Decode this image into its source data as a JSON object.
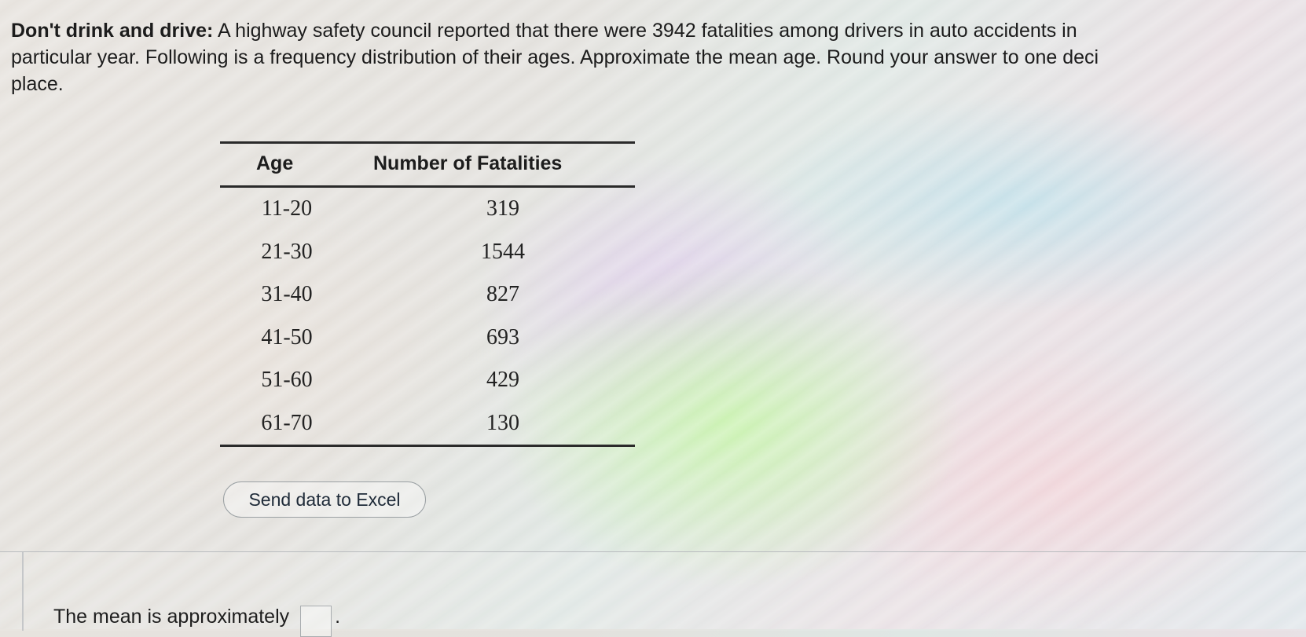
{
  "question": {
    "bold_lead": "Don't drink and drive:",
    "line1_rest": "A highway safety council reported that there were 3942 fatalities among drivers in auto accidents in",
    "line2": "particular year. Following is a frequency distribution of their ages. Approximate the mean age. Round your answer to one deci",
    "line3": "place."
  },
  "table": {
    "headers": {
      "age": "Age",
      "fatalities": "Number of Fatalities"
    },
    "rows": [
      {
        "age": "11-20",
        "fatalities": "319"
      },
      {
        "age": "21-30",
        "fatalities": "1544"
      },
      {
        "age": "31-40",
        "fatalities": "827"
      },
      {
        "age": "41-50",
        "fatalities": "693"
      },
      {
        "age": "51-60",
        "fatalities": "429"
      },
      {
        "age": "61-70",
        "fatalities": "130"
      }
    ]
  },
  "buttons": {
    "send_excel": "Send data to Excel"
  },
  "answer": {
    "prompt": "The mean is approximately",
    "value": "",
    "suffix": "."
  }
}
